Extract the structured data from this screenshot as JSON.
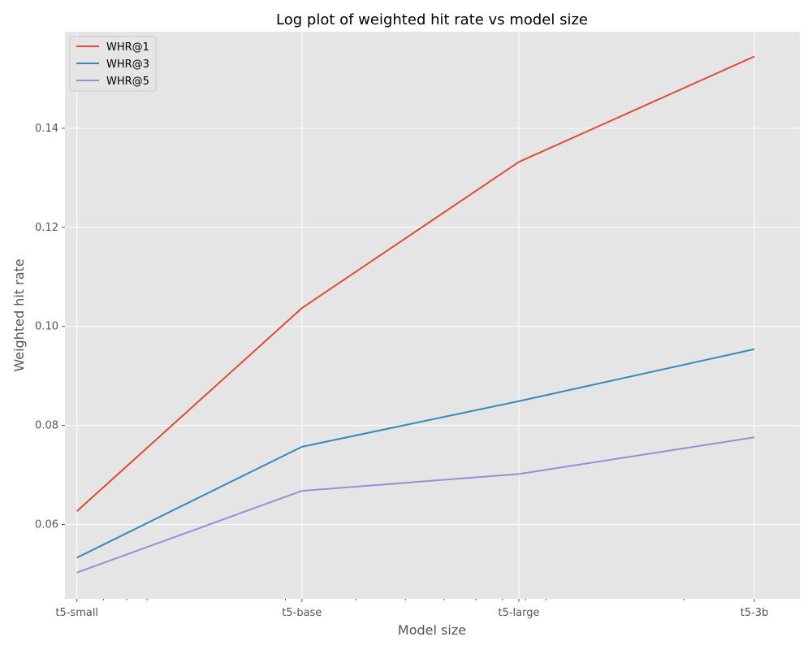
{
  "chart_data": {
    "type": "line",
    "title": "Log plot of weighted hit rate vs model size",
    "xlabel": "Model size",
    "ylabel": "Weighted hit rate",
    "x_scale": "log",
    "categories": [
      "t5-small",
      "t5-base",
      "t5-large",
      "t5-3b"
    ],
    "x_values": [
      60,
      220,
      770,
      3000
    ],
    "xlim": [
      56,
      3900
    ],
    "ylim": [
      0.045,
      0.1595
    ],
    "yticks": [
      0.06,
      0.08,
      0.1,
      0.12,
      0.14
    ],
    "ytick_labels": [
      "0.06",
      "0.08",
      "0.10",
      "0.12",
      "0.14"
    ],
    "grid": true,
    "legend_position": "top-left",
    "series": [
      {
        "name": "WHR@1",
        "color": "#E24A33",
        "values": [
          0.0627,
          0.1037,
          0.1332,
          0.1545
        ]
      },
      {
        "name": "WHR@3",
        "color": "#348ABD",
        "values": [
          0.0533,
          0.0757,
          0.0849,
          0.0954
        ]
      },
      {
        "name": "WHR@5",
        "color": "#988ED5",
        "values": [
          0.0503,
          0.0668,
          0.0702,
          0.0776
        ]
      }
    ]
  }
}
